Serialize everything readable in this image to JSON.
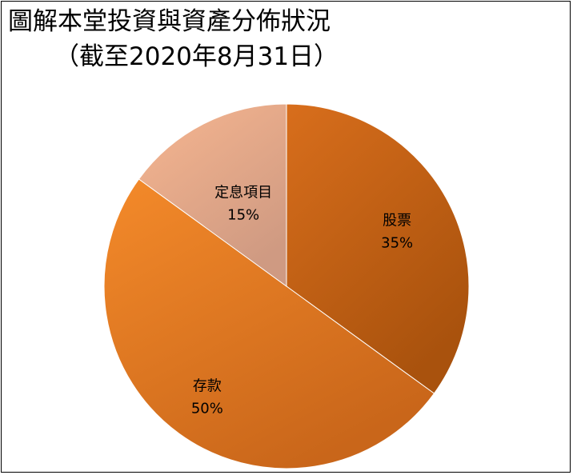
{
  "chart_data": {
    "type": "pie",
    "title": "圖解本堂投資與資產分佈狀況",
    "subtitle": "（截至2020年8月31日）",
    "slices": [
      {
        "label": "股票",
        "value": 35,
        "value_label": "35%",
        "color": "#d86e1c",
        "color_dark": "#a9520d"
      },
      {
        "label": "存款",
        "value": 50,
        "value_label": "50%",
        "color": "#f48a2a",
        "color_dark": "#c9661a"
      },
      {
        "label": "定息項目",
        "value": 15,
        "value_label": "15%",
        "color": "#f7b690",
        "color_dark": "#cf9a82"
      }
    ]
  }
}
